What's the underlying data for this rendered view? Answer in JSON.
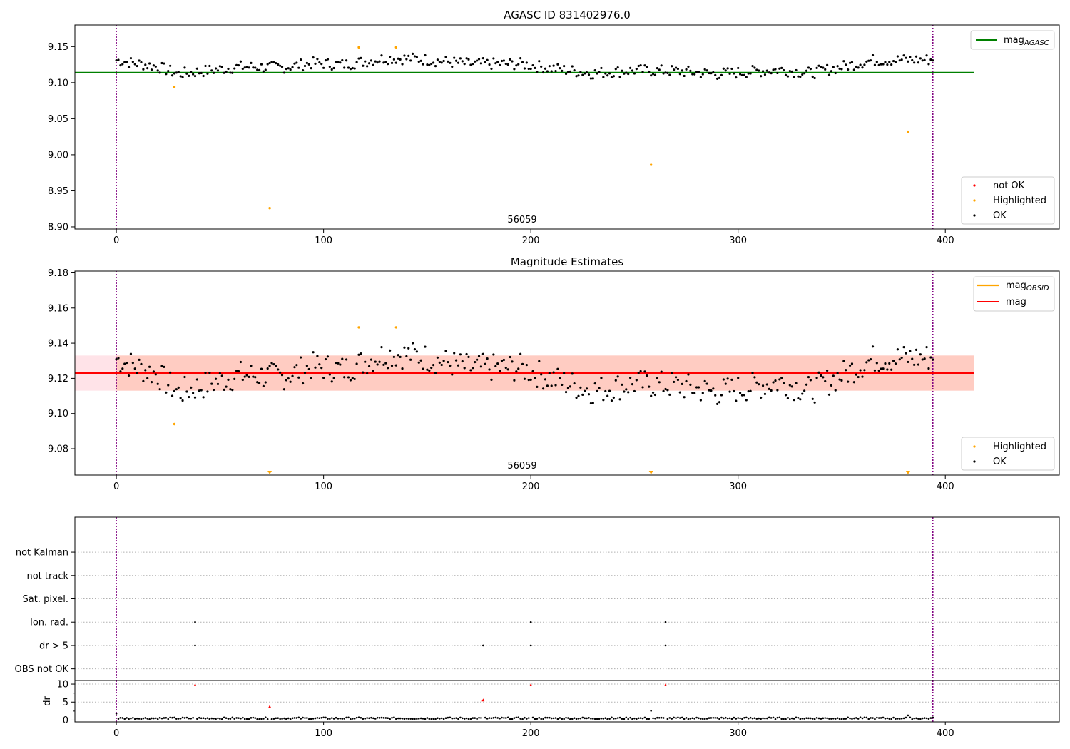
{
  "chart_data": [
    {
      "type": "scatter",
      "title": "AGASC ID 831402976.0",
      "annotation": "56059",
      "xlim": [
        -20,
        455
      ],
      "ylim": [
        8.897,
        9.18
      ],
      "xticks": [
        0,
        100,
        200,
        300,
        400
      ],
      "yticks": [
        "8.90",
        "8.95",
        "9.00",
        "9.05",
        "9.10",
        "9.15"
      ],
      "vlines": [
        0,
        394
      ],
      "line_series": {
        "name": "mag_AGASC",
        "label_main": "mag",
        "label_sub": "AGASC",
        "y": 9.114,
        "x": [
          -20,
          414
        ],
        "color": "#008000"
      },
      "marker_legend": [
        {
          "name": "not OK",
          "color": "#ff0000"
        },
        {
          "name": "Highlighted",
          "color": "#ffa500"
        },
        {
          "name": "OK",
          "color": "#000000"
        }
      ],
      "series": [
        {
          "name": "OK",
          "color": "#000000",
          "trend": [
            [
              0,
              9.131
            ],
            [
              20,
              9.122
            ],
            [
              30,
              9.112
            ],
            [
              45,
              9.117
            ],
            [
              60,
              9.122
            ],
            [
              80,
              9.121
            ],
            [
              95,
              9.127
            ],
            [
              110,
              9.125
            ],
            [
              130,
              9.134
            ],
            [
              145,
              9.133
            ],
            [
              170,
              9.126
            ],
            [
              195,
              9.126
            ],
            [
              215,
              9.118
            ],
            [
              230,
              9.113
            ],
            [
              250,
              9.117
            ],
            [
              270,
              9.116
            ],
            [
              290,
              9.112
            ],
            [
              320,
              9.118
            ],
            [
              335,
              9.113
            ],
            [
              350,
              9.122
            ],
            [
              365,
              9.131
            ],
            [
              394,
              9.132
            ]
          ],
          "amp": 0.008,
          "n": 395
        },
        {
          "name": "Highlighted",
          "color": "#ffa500",
          "x": [
            28,
            74,
            117,
            135,
            258,
            382
          ],
          "y": [
            9.094,
            8.926,
            9.149,
            9.149,
            8.986,
            9.032
          ]
        }
      ]
    },
    {
      "type": "scatter",
      "title": "Magnitude Estimates",
      "annotation": "56059",
      "xlim": [
        -20,
        455
      ],
      "ylim": [
        9.065,
        9.181
      ],
      "xticks": [
        0,
        100,
        200,
        300,
        400
      ],
      "yticks": [
        "9.08",
        "9.10",
        "9.12",
        "9.14",
        "9.16",
        "9.18"
      ],
      "vlines": [
        0,
        394
      ],
      "mag": {
        "name": "mag",
        "y": 9.123,
        "band": [
          9.113,
          9.133
        ],
        "color": "#ff0000",
        "band_color": "#ffc0cb"
      },
      "mag_obsid": {
        "name": "mag_OBSID",
        "label_main": "mag",
        "label_sub": "OBSID",
        "y": 9.123,
        "band": [
          9.113,
          9.133
        ],
        "x": [
          0,
          414
        ],
        "color": "#ffa500"
      },
      "marker_legend": [
        {
          "name": "Highlighted",
          "color": "#ffa500"
        },
        {
          "name": "OK",
          "color": "#000000"
        }
      ],
      "offscale_markers": {
        "x": [
          74,
          258,
          382
        ],
        "color": "#ffa500"
      },
      "series": [
        {
          "name": "OK",
          "color": "#000000",
          "ref": 0
        },
        {
          "name": "Highlighted",
          "color": "#ffa500",
          "x": [
            28,
            117,
            135
          ],
          "y": [
            9.094,
            9.149,
            9.149
          ]
        }
      ]
    },
    {
      "type": "scatter",
      "title": "",
      "xlim": [
        -20,
        455
      ],
      "ylim": [
        -0.5,
        6.5
      ],
      "xticks": [
        0,
        100,
        200,
        300,
        400
      ],
      "categories": [
        "OBS not OK",
        "dr > 5",
        "Ion. rad.",
        "Sat. pixel.",
        "not track",
        "not Kalman"
      ],
      "vlines": [
        0,
        394
      ],
      "flags": {
        "Ion. rad.": [
          38,
          200,
          265
        ],
        "dr > 5": [
          38,
          177,
          200,
          265
        ]
      }
    },
    {
      "type": "scatter",
      "title": "",
      "ylabel": "dr",
      "xlim": [
        -20,
        455
      ],
      "ylim": [
        -0.5,
        11
      ],
      "xticks": [
        "0",
        "100",
        "200",
        "300",
        "400"
      ],
      "yticks": [
        "0",
        "5",
        "10"
      ],
      "vlines": [
        0,
        394
      ],
      "baseline": 0.5,
      "n": 395,
      "outliers": [
        {
          "x": 0,
          "y": 1.8,
          "color": "#000000"
        },
        {
          "x": 38,
          "y": 9.8,
          "color": "#ff0000"
        },
        {
          "x": 74,
          "y": 3.8,
          "color": "#ff0000"
        },
        {
          "x": 177,
          "y": 5.6,
          "color": "#ff0000"
        },
        {
          "x": 200,
          "y": 9.8,
          "color": "#ff0000"
        },
        {
          "x": 258,
          "y": 2.6,
          "color": "#000000"
        },
        {
          "x": 265,
          "y": 9.8,
          "color": "#ff0000"
        },
        {
          "x": 382,
          "y": 1.3,
          "color": "#000000"
        }
      ]
    }
  ]
}
